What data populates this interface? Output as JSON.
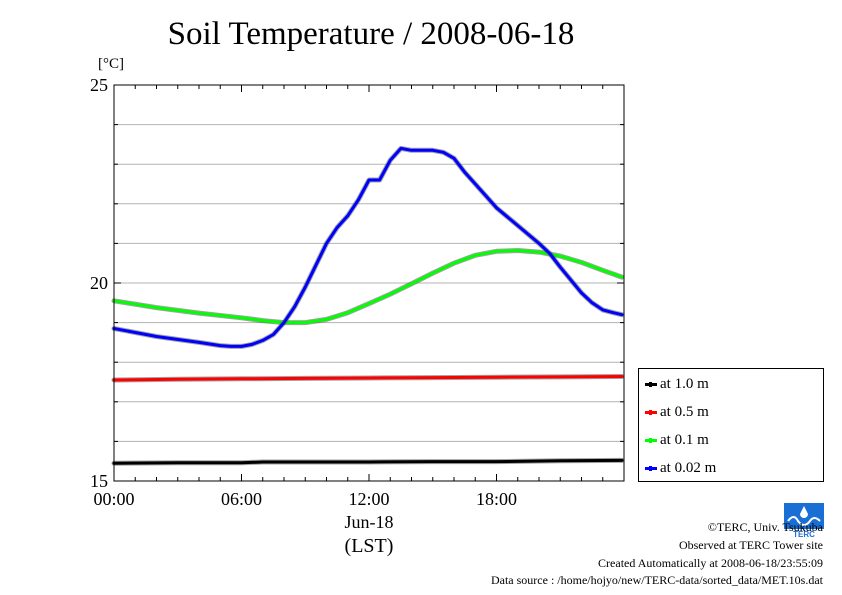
{
  "chart_data": {
    "type": "line",
    "title": "Soil Temperature / 2008-06-18",
    "yunit": "[°C]",
    "ylim": [
      15,
      25
    ],
    "yticks": [
      15,
      20,
      25
    ],
    "xlim": [
      0,
      24
    ],
    "xticks": [
      {
        "value": 0,
        "label": "00:00"
      },
      {
        "value": 6,
        "label": "06:00"
      },
      {
        "value": 12,
        "label": "12:00"
      },
      {
        "value": 18,
        "label": "18:00"
      }
    ],
    "xdate": "Jun-18",
    "xlabel": "(LST)",
    "grid": "horizontal",
    "legend_position": "right",
    "series": [
      {
        "name": "at 1.0 m",
        "color": "#000000",
        "x": [
          0,
          3,
          6,
          7,
          9,
          12,
          15,
          18,
          21,
          23.9
        ],
        "y": [
          15.45,
          15.46,
          15.46,
          15.48,
          15.48,
          15.48,
          15.49,
          15.49,
          15.51,
          15.52
        ]
      },
      {
        "name": "at 0.5 m",
        "color": "#ff0000",
        "x": [
          0,
          3,
          6,
          9,
          12,
          15,
          18,
          21,
          23.9
        ],
        "y": [
          17.55,
          17.57,
          17.58,
          17.59,
          17.6,
          17.61,
          17.62,
          17.63,
          17.64
        ]
      },
      {
        "name": "at 0.1 m",
        "color": "#00ff00",
        "x": [
          0,
          2,
          4,
          6,
          7,
          8,
          9,
          10,
          11,
          12,
          13,
          14,
          15,
          16,
          17,
          18,
          19,
          20,
          21,
          22,
          23,
          23.9
        ],
        "y": [
          19.55,
          19.38,
          19.24,
          19.12,
          19.05,
          19.0,
          19.0,
          19.08,
          19.25,
          19.48,
          19.72,
          19.98,
          20.25,
          20.5,
          20.7,
          20.8,
          20.82,
          20.78,
          20.68,
          20.52,
          20.32,
          20.15
        ]
      },
      {
        "name": "at 0.02 m",
        "color": "#0000ff",
        "x": [
          0,
          2,
          4,
          5,
          5.5,
          6,
          6.5,
          7,
          7.5,
          8,
          8.5,
          9,
          9.5,
          10,
          10.5,
          11,
          11.5,
          12,
          12.5,
          13,
          13.5,
          14,
          15,
          15.5,
          16,
          16.5,
          17,
          17.5,
          18,
          19,
          20,
          20.5,
          21,
          22,
          22.5,
          23,
          23.5,
          23.9
        ],
        "y": [
          18.85,
          18.65,
          18.5,
          18.42,
          18.4,
          18.4,
          18.45,
          18.55,
          18.7,
          19.0,
          19.4,
          19.9,
          20.45,
          21.0,
          21.4,
          21.7,
          22.1,
          22.6,
          22.6,
          23.1,
          23.4,
          23.35,
          23.35,
          23.3,
          23.15,
          22.8,
          22.5,
          22.2,
          21.9,
          21.45,
          21.0,
          20.75,
          20.4,
          19.75,
          19.5,
          19.32,
          19.25,
          19.2
        ]
      }
    ]
  },
  "credits": {
    "copyright": "©TERC, Univ. Tsukuba",
    "observed": "Observed at TERC Tower site",
    "created": "Created Automatically at 2008-06-18/23:55:09",
    "source": "Data source : /home/hojyo/new/TERC-data/sorted_data/MET.10s.dat"
  },
  "logo": {
    "text": "TERC",
    "color": "#1a6fd4"
  }
}
